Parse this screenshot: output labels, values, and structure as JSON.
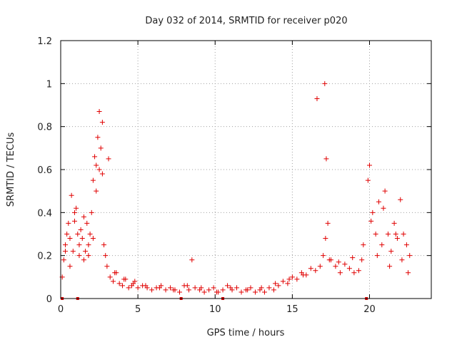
{
  "chart_data": {
    "type": "scatter",
    "title": "Day 032 of 2014, SRMTID for receiver p020",
    "xlabel": "GPS time / hours",
    "ylabel": "SRMTID / TECUs",
    "xlim": [
      0,
      24.0
    ],
    "ylim": [
      0,
      1.2
    ],
    "x_ticks": [
      0,
      5,
      10,
      15,
      20
    ],
    "x_tick_labels": [
      "0",
      "5",
      "10",
      "15",
      "20"
    ],
    "y_ticks": [
      0,
      0.2,
      0.4,
      0.6,
      0.8,
      1.0,
      1.2
    ],
    "y_tick_labels": [
      "0",
      "0.2",
      "0.4",
      "0.6",
      "0.8",
      "1",
      "1.2"
    ],
    "grid": true,
    "marker": "+",
    "color": "#e00000",
    "zero_markers_x": [
      0.1,
      1.1,
      7.8,
      10.5,
      19.8
    ],
    "series": [
      {
        "name": "SRMTID",
        "x": [
          0.1,
          0.2,
          0.3,
          0.4,
          0.5,
          0.6,
          0.7,
          0.8,
          0.9,
          1.0,
          1.1,
          1.2,
          1.3,
          1.4,
          1.5,
          1.6,
          1.7,
          1.8,
          1.9,
          2.0,
          2.1,
          2.2,
          2.3,
          2.4,
          2.5,
          2.6,
          2.7,
          2.8,
          2.9,
          3.0,
          3.2,
          3.4,
          3.6,
          3.8,
          4.0,
          4.2,
          4.4,
          4.6,
          4.8,
          5.0,
          5.3,
          5.6,
          5.9,
          6.2,
          6.5,
          6.8,
          7.1,
          7.4,
          7.7,
          8.0,
          8.3,
          8.5,
          8.7,
          9.0,
          9.3,
          9.6,
          9.9,
          10.2,
          10.5,
          10.8,
          11.1,
          11.4,
          11.7,
          12.0,
          12.3,
          12.6,
          12.9,
          13.2,
          13.5,
          13.8,
          14.1,
          14.4,
          14.7,
          15.0,
          15.3,
          15.6,
          15.9,
          16.2,
          16.5,
          16.8,
          17.0,
          17.1,
          17.2,
          17.3,
          17.5,
          17.8,
          18.1,
          18.4,
          18.7,
          19.0,
          19.3,
          19.6,
          19.9,
          20.0,
          20.2,
          20.4,
          20.6,
          20.8,
          21.0,
          21.2,
          21.4,
          21.6,
          21.8,
          22.0,
          22.2,
          22.4,
          22.6,
          0.3,
          0.6,
          0.9,
          1.2,
          1.5,
          1.8,
          2.1,
          2.3,
          2.5,
          2.7,
          3.1,
          3.5,
          4.1,
          4.7,
          5.5,
          6.4,
          7.3,
          8.2,
          9.1,
          10.1,
          11.0,
          12.1,
          13.0,
          13.9,
          14.8,
          15.7,
          16.6,
          17.15,
          17.4,
          18.0,
          18.9,
          19.5,
          20.1,
          20.5,
          20.9,
          21.3,
          21.7,
          22.1,
          22.5
        ],
        "y": [
          0.1,
          0.18,
          0.25,
          0.3,
          0.35,
          0.28,
          0.48,
          0.22,
          0.36,
          0.42,
          0.3,
          0.25,
          0.32,
          0.28,
          0.18,
          0.22,
          0.35,
          0.2,
          0.3,
          0.4,
          0.55,
          0.66,
          0.62,
          0.75,
          0.87,
          0.7,
          0.58,
          0.25,
          0.2,
          0.15,
          0.1,
          0.08,
          0.12,
          0.07,
          0.06,
          0.09,
          0.05,
          0.06,
          0.08,
          0.05,
          0.06,
          0.05,
          0.04,
          0.05,
          0.06,
          0.04,
          0.05,
          0.04,
          0.03,
          0.06,
          0.04,
          0.18,
          0.05,
          0.04,
          0.03,
          0.04,
          0.05,
          0.03,
          0.04,
          0.06,
          0.04,
          0.05,
          0.03,
          0.04,
          0.05,
          0.03,
          0.04,
          0.03,
          0.05,
          0.04,
          0.06,
          0.08,
          0.07,
          0.1,
          0.09,
          0.12,
          0.11,
          0.14,
          0.13,
          0.15,
          0.2,
          1.0,
          0.65,
          0.35,
          0.18,
          0.15,
          0.12,
          0.16,
          0.14,
          0.12,
          0.13,
          0.25,
          0.55,
          0.62,
          0.4,
          0.3,
          0.45,
          0.25,
          0.5,
          0.3,
          0.22,
          0.35,
          0.28,
          0.46,
          0.3,
          0.25,
          0.2,
          0.22,
          0.15,
          0.4,
          0.2,
          0.38,
          0.25,
          0.28,
          0.5,
          0.6,
          0.82,
          0.65,
          0.12,
          0.09,
          0.07,
          0.06,
          0.05,
          0.04,
          0.06,
          0.05,
          0.03,
          0.05,
          0.04,
          0.05,
          0.07,
          0.09,
          0.11,
          0.93,
          0.28,
          0.18,
          0.17,
          0.19,
          0.18,
          0.36,
          0.2,
          0.42,
          0.15,
          0.3,
          0.18,
          0.12
        ]
      }
    ]
  }
}
